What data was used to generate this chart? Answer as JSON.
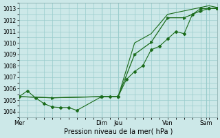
{
  "xlabel": "Pression niveau de la mer( hPa )",
  "background_color": "#cce8e8",
  "grid_color": "#99cccc",
  "line_color": "#1a6b1a",
  "ylim": [
    1003.5,
    1013.5
  ],
  "yticks": [
    1004,
    1005,
    1006,
    1007,
    1008,
    1009,
    1010,
    1011,
    1012,
    1013
  ],
  "day_labels": [
    "Mer",
    "Dim",
    "Jeu",
    "Ven",
    "Sam"
  ],
  "day_x": [
    0,
    60,
    72,
    108,
    136
  ],
  "xlim": [
    0,
    144
  ],
  "vline_positions": [
    60,
    72,
    108,
    136
  ],
  "series1_x": [
    0,
    6,
    12,
    18,
    24,
    30,
    36,
    42,
    60,
    66,
    72,
    78,
    84,
    90,
    96,
    102,
    108,
    114,
    120,
    126,
    132,
    138,
    144
  ],
  "series1_y": [
    1005.3,
    1005.8,
    1005.2,
    1004.7,
    1004.4,
    1004.35,
    1004.35,
    1004.1,
    1005.3,
    1005.3,
    1005.3,
    1006.8,
    1007.5,
    1008.0,
    1009.4,
    1009.7,
    1010.35,
    1011.0,
    1010.8,
    1012.5,
    1013.0,
    1013.0,
    1013.0
  ],
  "series2_x": [
    0,
    24,
    60,
    72,
    84,
    96,
    108,
    120,
    132,
    138,
    144
  ],
  "series2_y": [
    1005.3,
    1005.2,
    1005.3,
    1005.3,
    1009.0,
    1010.05,
    1012.2,
    1012.2,
    1012.8,
    1013.0,
    1013.05
  ],
  "series3_x": [
    0,
    24,
    60,
    72,
    84,
    96,
    108,
    120,
    132,
    138,
    144
  ],
  "series3_y": [
    1005.3,
    1005.2,
    1005.3,
    1005.3,
    1010.0,
    1010.8,
    1012.5,
    1012.8,
    1013.1,
    1013.25,
    1013.1
  ]
}
